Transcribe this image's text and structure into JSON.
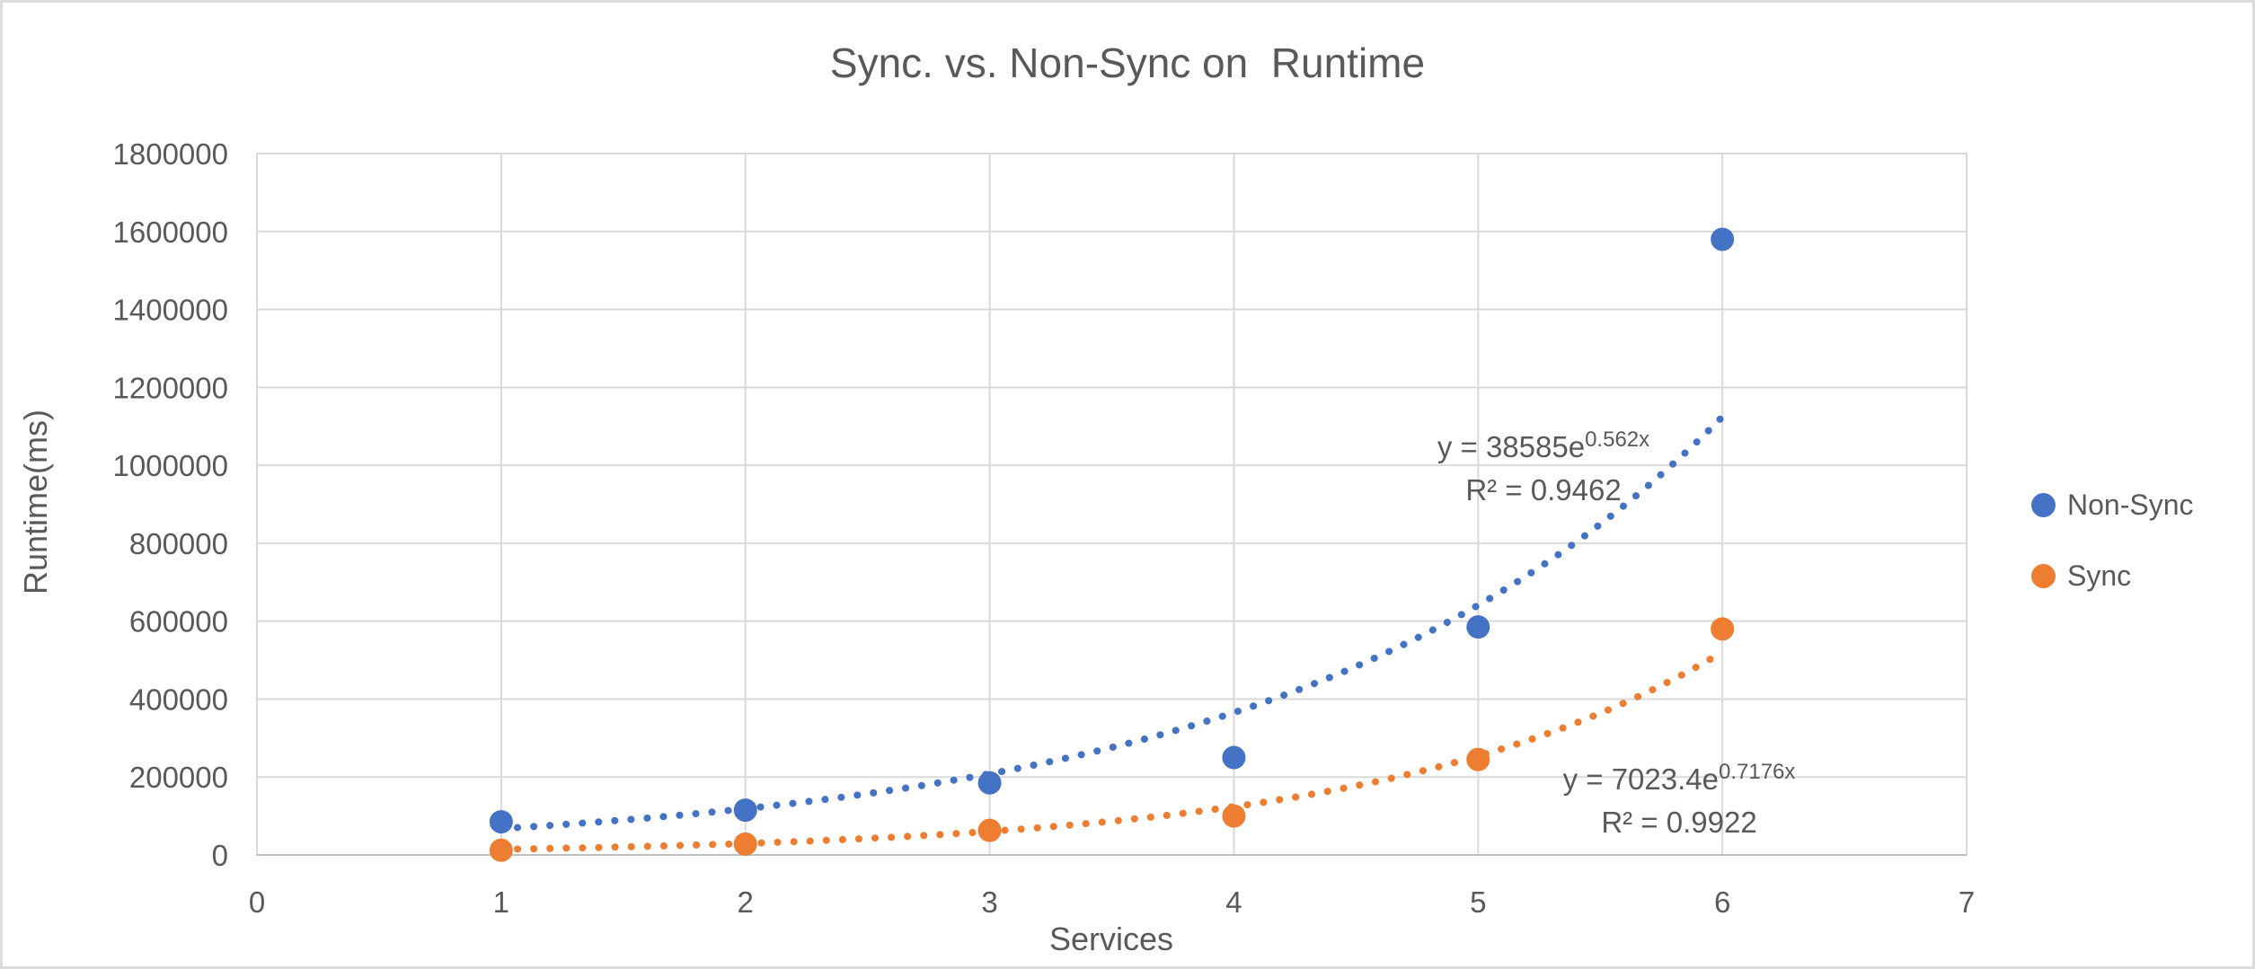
{
  "chart_data": {
    "type": "scatter",
    "title": "Sync. vs. Non-Sync on  Runtime",
    "xlabel": "Services",
    "ylabel": "Runtime(ms)",
    "xlim": [
      0,
      7
    ],
    "ylim": [
      0,
      1800000
    ],
    "x_ticks": [
      0,
      1,
      2,
      3,
      4,
      5,
      6,
      7
    ],
    "x_tick_labels": [
      "0",
      "1",
      "2",
      "3",
      "4",
      "5",
      "6",
      "7"
    ],
    "y_ticks": [
      0,
      200000,
      400000,
      600000,
      800000,
      1000000,
      1200000,
      1400000,
      1600000,
      1800000
    ],
    "y_tick_labels": [
      "0",
      "200000",
      "400000",
      "600000",
      "800000",
      "1000000",
      "1200000",
      "1400000",
      "1600000",
      "1800000"
    ],
    "grid": true,
    "legend_position": "right",
    "colors": {
      "gridline": "#d9d9d9",
      "axis": "#bfbfbf",
      "text": "#595959"
    },
    "series": [
      {
        "name": "Non-Sync",
        "color": "#4472c4",
        "x": [
          1,
          2,
          3,
          4,
          5,
          6
        ],
        "y": [
          85000,
          115000,
          185000,
          250000,
          585000,
          1580000
        ],
        "trendline": {
          "type": "exponential",
          "a": 38585,
          "b": 0.562,
          "range": [
            1,
            6
          ],
          "eq_base": "y = 38585e",
          "eq_exp": "0.562x",
          "r2": "R² = 0.9462"
        }
      },
      {
        "name": "Sync",
        "color": "#ed7d31",
        "x": [
          1,
          2,
          3,
          4,
          5,
          6
        ],
        "y": [
          12000,
          28000,
          63000,
          100000,
          245000,
          580000
        ],
        "trendline": {
          "type": "exponential",
          "a": 7023.4,
          "b": 0.7176,
          "range": [
            1,
            6
          ],
          "eq_base": "y = 7023.4e",
          "eq_exp": "0.7176x",
          "r2": "R² = 0.9922"
        }
      }
    ]
  }
}
